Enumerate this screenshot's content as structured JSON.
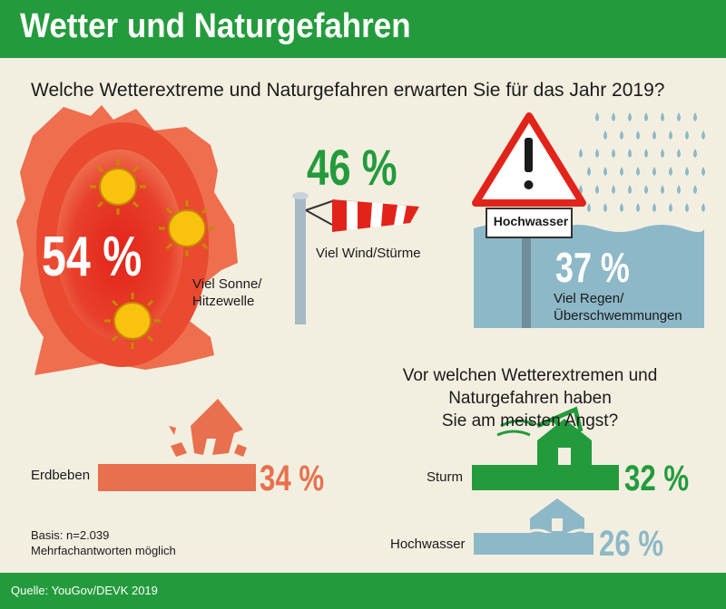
{
  "header": {
    "title": "Wetter und Naturgefahren"
  },
  "question1": "Welche Wetterextreme und Naturgefahren erwarten Sie für das Jahr 2019?",
  "question2_line1": "Vor welchen Wetterextremen und Naturgefahren haben",
  "question2_line2": "Sie am meisten Angst?",
  "sign_text": "Hochwasser",
  "basis_line1": "Basis: n=2.039",
  "basis_line2": "Mehrfachantworten möglich",
  "source": "Quelle: YouGov/DEVK 2019",
  "colors": {
    "green": "#239b3c",
    "orange": "#e8704e",
    "red": "#e2231a",
    "blue_grey": "#8db8c8",
    "background": "#f3efe0",
    "sun": "#f8c20f"
  },
  "icons": [
    "germany-map-icon",
    "sun-icon",
    "windsock-icon",
    "warning-sign-icon",
    "raindrops-icon",
    "earthquake-house-icon",
    "storm-house-icon",
    "flooded-house-icon"
  ],
  "chart_data": [
    {
      "type": "bar",
      "title": "Welche Wetterextreme und Naturgefahren erwarten Sie für das Jahr 2019?",
      "unit": "%",
      "categories": [
        "Viel Sonne/Hitzewelle",
        "Viel Wind/Stürme",
        "Viel Regen/Überschwemmungen"
      ],
      "label_lines": [
        [
          "Viel Sonne/",
          "Hitzewelle"
        ],
        [
          "Viel Wind/Stürme"
        ],
        [
          "Viel Regen/",
          "Überschwemmungen"
        ]
      ],
      "values": [
        54,
        46,
        37
      ],
      "value_labels": [
        "54 %",
        "46 %",
        "37 %"
      ]
    },
    {
      "type": "bar",
      "title": "Vor welchen Wetterextremen und Naturgefahren haben Sie am meisten Angst?",
      "unit": "%",
      "categories": [
        "Erdbeben",
        "Sturm",
        "Hochwasser"
      ],
      "values": [
        34,
        32,
        26
      ],
      "value_labels": [
        "34 %",
        "32 %",
        "26 %"
      ]
    }
  ]
}
